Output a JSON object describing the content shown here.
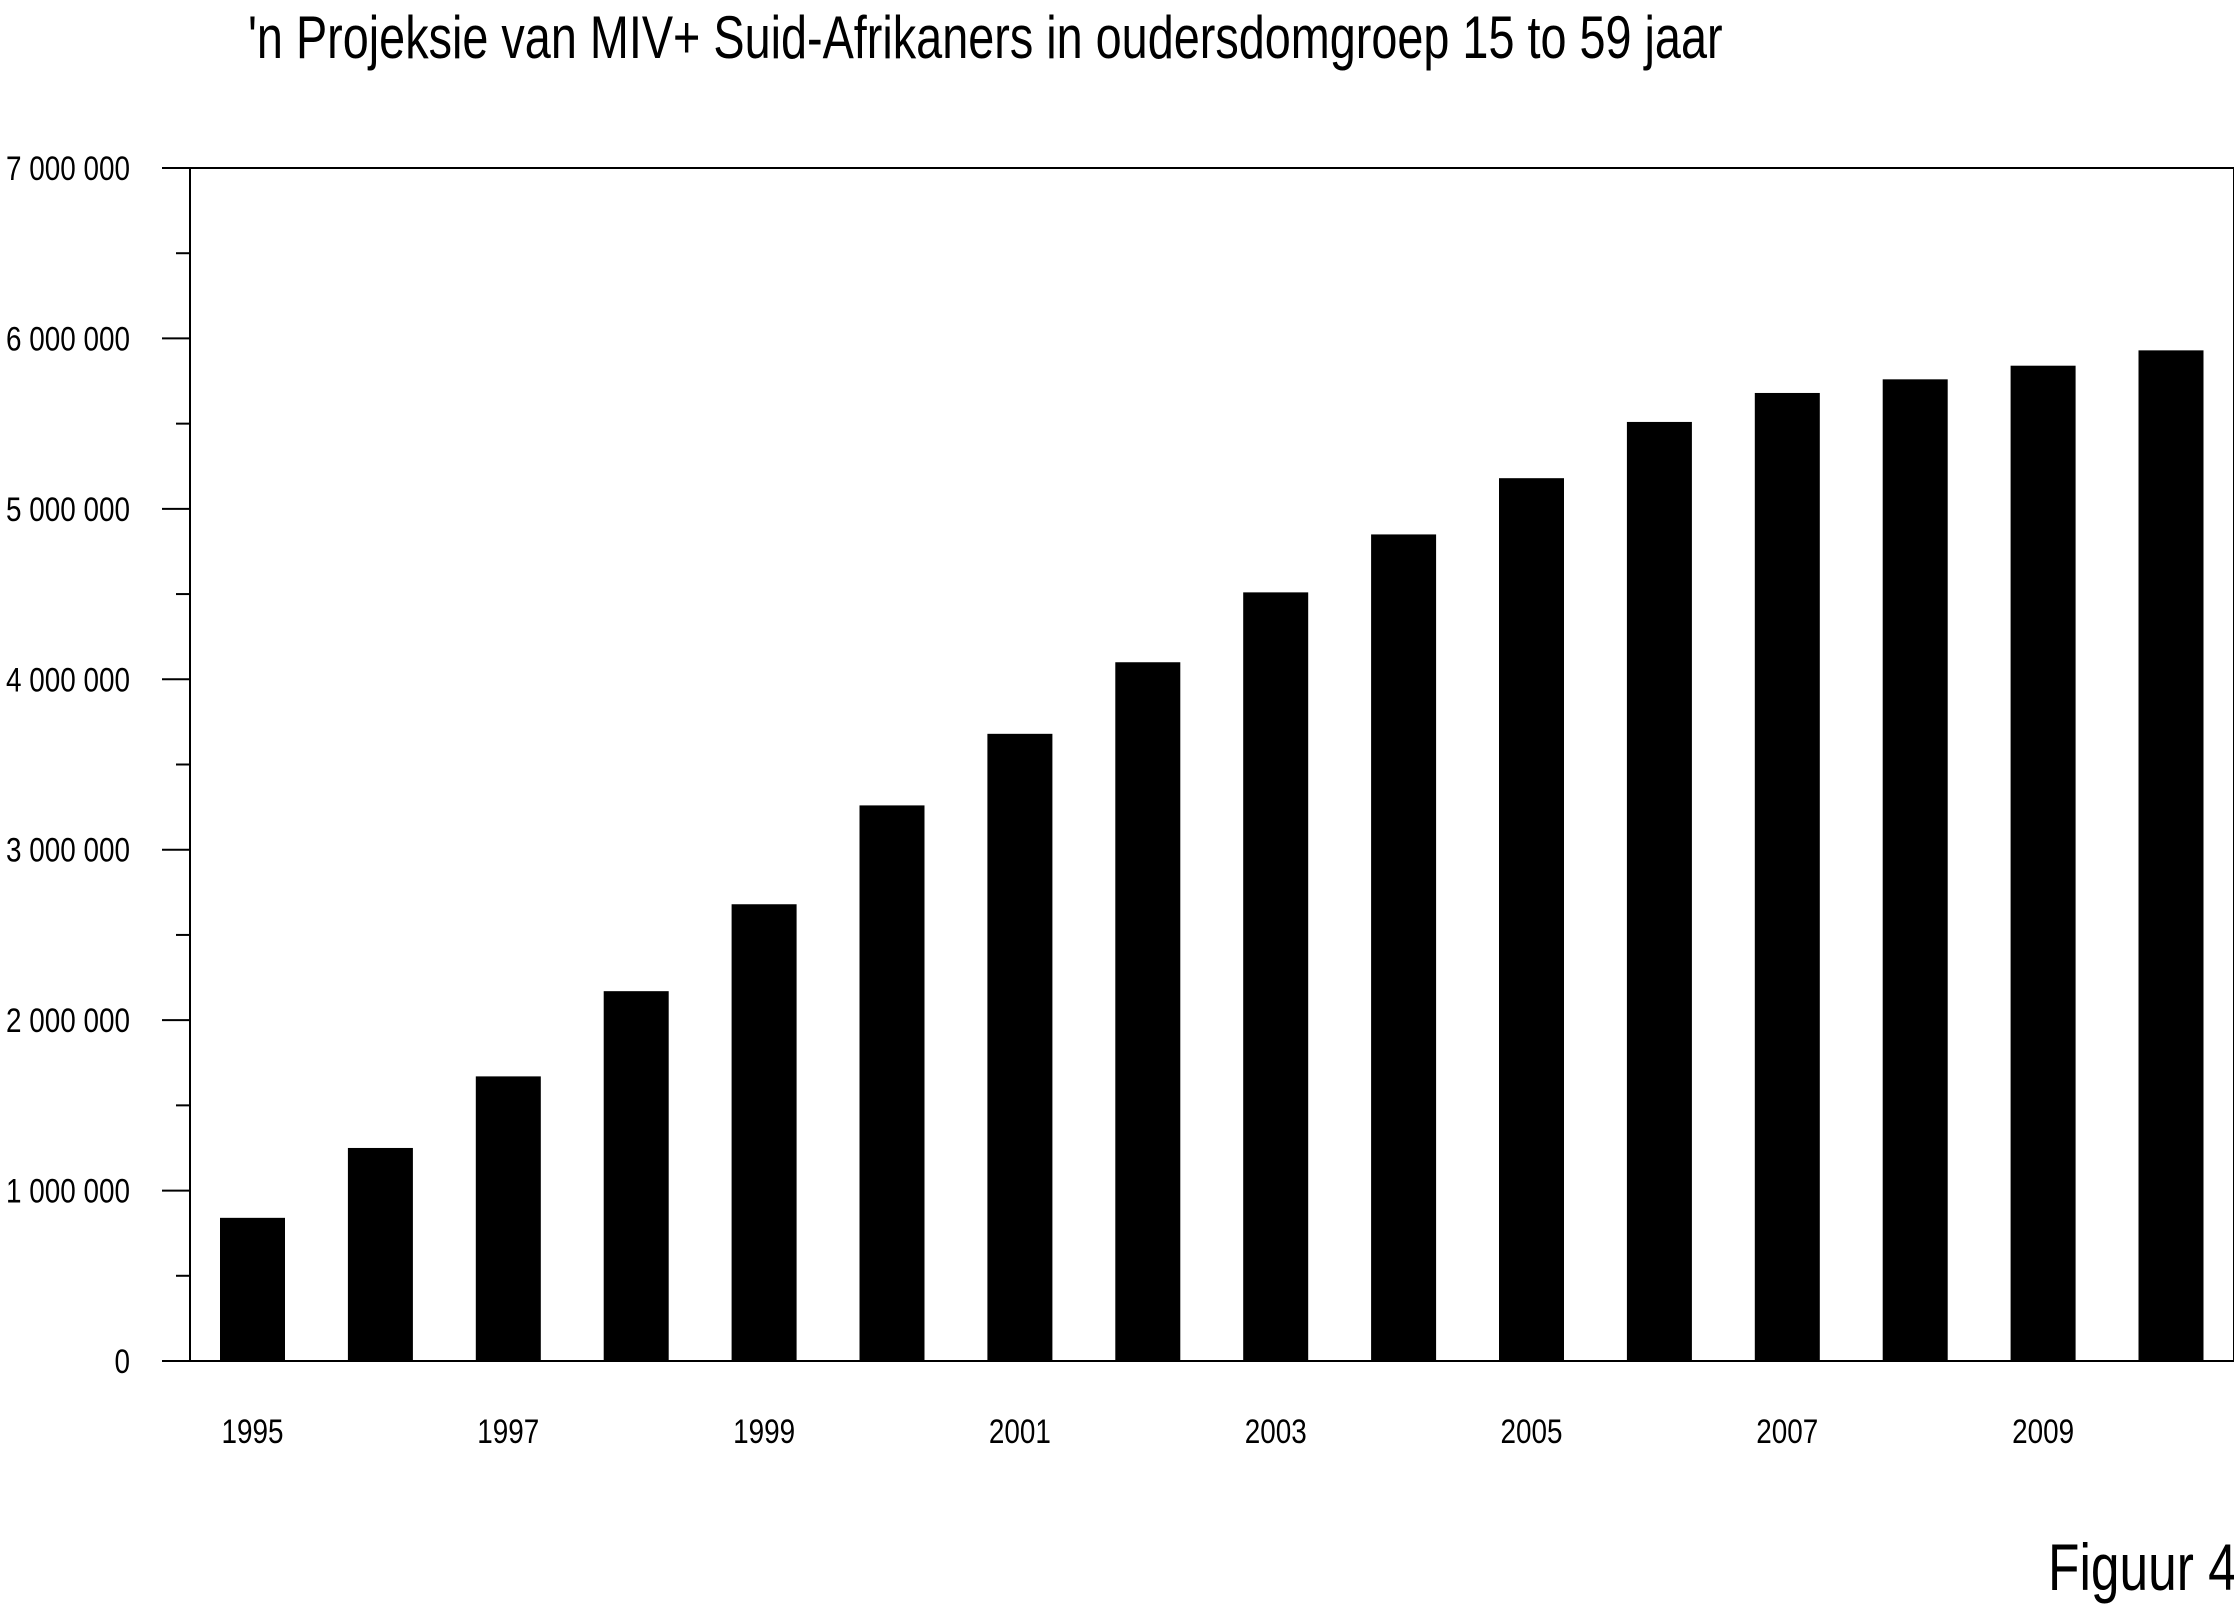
{
  "chart_data": {
    "type": "bar",
    "title": "'n Projeksie van MIV+ Suid-Afrikaners in oudersdomgroep 15 to 59 jaar",
    "xlabel": "",
    "ylabel": "",
    "figure_label": "Figuur 4",
    "categories": [
      "1995",
      "1996",
      "1997",
      "1998",
      "1999",
      "2000",
      "2001",
      "2002",
      "2003",
      "2004",
      "2005",
      "2006",
      "2007",
      "2008",
      "2009",
      "2010"
    ],
    "x_tick_labels": [
      "1995",
      "1997",
      "1999",
      "2001",
      "2003",
      "2005",
      "2007",
      "2009"
    ],
    "values": [
      840000,
      1250000,
      1670000,
      2170000,
      2680000,
      3260000,
      3680000,
      4100000,
      4510000,
      4850000,
      5180000,
      5510000,
      5680000,
      5760000,
      5840000,
      5930000
    ],
    "ylim": [
      0,
      7000000
    ],
    "y_ticks": [
      0,
      1000000,
      2000000,
      3000000,
      4000000,
      5000000,
      6000000,
      7000000
    ],
    "y_tick_labels": [
      "0",
      "1 000 000",
      "2 000 000",
      "3 000 000",
      "4 000 000",
      "5 000 000",
      "6 000 000",
      "7 000 000"
    ],
    "grid": false,
    "legend": "none",
    "bar_color": "#000000"
  }
}
